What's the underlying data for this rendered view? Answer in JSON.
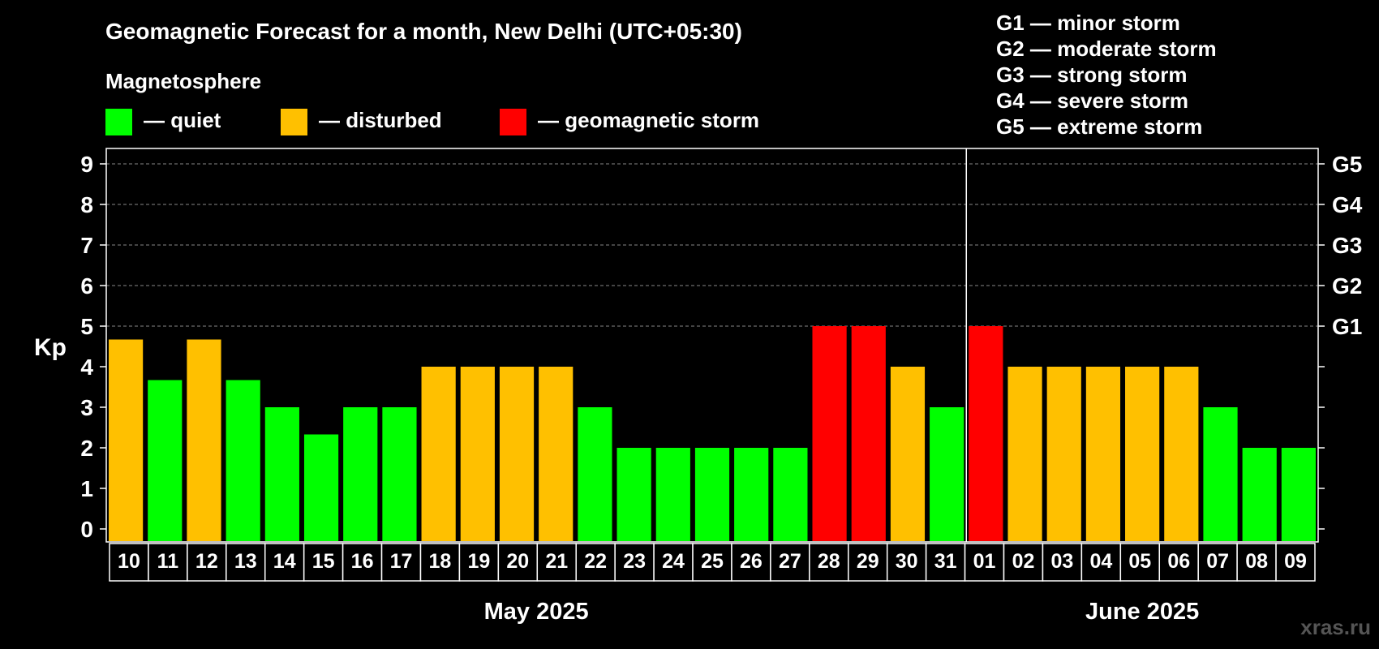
{
  "chart_data": {
    "type": "bar",
    "title": "Geomagnetic Forecast for a month, New Delhi (UTC+05:30)",
    "subtitle": "Magnetosphere",
    "ylabel": "Kp",
    "ylim": [
      0,
      9
    ],
    "yticks": [
      "0",
      "1",
      "2",
      "3",
      "4",
      "5",
      "6",
      "7",
      "8",
      "9"
    ],
    "right_ticks": [
      {
        "kp": 5,
        "label": "G1"
      },
      {
        "kp": 6,
        "label": "G2"
      },
      {
        "kp": 7,
        "label": "G3"
      },
      {
        "kp": 8,
        "label": "G4"
      },
      {
        "kp": 9,
        "label": "G5"
      }
    ],
    "legend": [
      {
        "status": "quiet",
        "label": "— quiet",
        "color": "#00ff00"
      },
      {
        "status": "disturbed",
        "label": "— disturbed",
        "color": "#ffc000"
      },
      {
        "status": "storm",
        "label": "— geomagnetic storm",
        "color": "#ff0000"
      }
    ],
    "storm_scale": [
      "G1 — minor storm",
      "G2 — moderate storm",
      "G3 — strong storm",
      "G4 — severe storm",
      "G5 — extreme storm"
    ],
    "months": [
      {
        "label": "May 2025",
        "first_index": 0,
        "last_index": 21
      },
      {
        "label": "June 2025",
        "first_index": 22,
        "last_index": 30
      }
    ],
    "categories": [
      "10",
      "11",
      "12",
      "13",
      "14",
      "15",
      "16",
      "17",
      "18",
      "19",
      "20",
      "21",
      "22",
      "23",
      "24",
      "25",
      "26",
      "27",
      "28",
      "29",
      "30",
      "31",
      "01",
      "02",
      "03",
      "04",
      "05",
      "06",
      "07",
      "08",
      "09"
    ],
    "values": [
      4.67,
      3.67,
      4.67,
      3.67,
      3,
      2.33,
      3,
      3,
      4,
      4,
      4,
      4,
      3,
      2,
      2,
      2,
      2,
      2,
      5,
      5,
      4,
      3,
      5,
      4,
      4,
      4,
      4,
      4,
      3,
      2,
      2
    ],
    "status": [
      "disturbed",
      "quiet",
      "disturbed",
      "quiet",
      "quiet",
      "quiet",
      "quiet",
      "quiet",
      "disturbed",
      "disturbed",
      "disturbed",
      "disturbed",
      "quiet",
      "quiet",
      "quiet",
      "quiet",
      "quiet",
      "quiet",
      "storm",
      "storm",
      "disturbed",
      "quiet",
      "storm",
      "disturbed",
      "disturbed",
      "disturbed",
      "disturbed",
      "disturbed",
      "quiet",
      "quiet",
      "quiet"
    ],
    "watermark": "xras.ru"
  }
}
